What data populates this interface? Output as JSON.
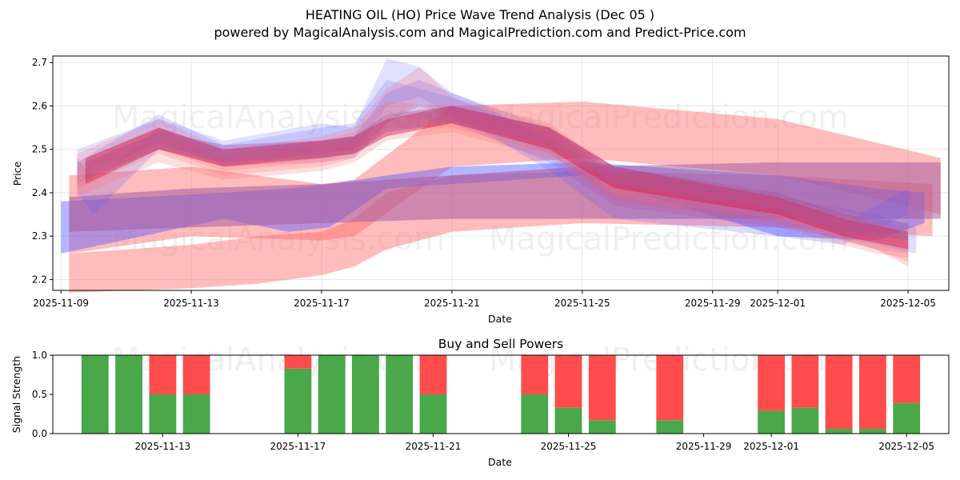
{
  "header": {
    "title": "HEATING OIL (HO) Price Wave Trend Analysis (Dec 05 )",
    "subtitle": "powered by MagicalAnalysis.com and MagicalPrediction.com and Predict-Price.com"
  },
  "watermarks": [
    "MagicalAnalysis.com",
    "MagicalPrediction.com"
  ],
  "colors": {
    "sell": "#ff4c4c",
    "buy": "#4aa74a",
    "blue_band": "#5a5aff",
    "red_band": "#ff6b6b",
    "grid": "#e6e6e6"
  },
  "chart_data": [
    {
      "type": "area",
      "title": "",
      "xlabel": "Date",
      "ylabel": "Price",
      "x_range": [
        "2025-11-08T18:00",
        "2025-12-06T06:00"
      ],
      "ylim": [
        2.175,
        2.715
      ],
      "yticks": [
        2.2,
        2.3,
        2.4,
        2.5,
        2.6,
        2.7
      ],
      "ytick_labels": [
        "2.2",
        "2.3",
        "2.4",
        "2.5",
        "2.6",
        "2.7"
      ],
      "xticks": [
        "2025-11-09",
        "2025-11-13",
        "2025-11-17",
        "2025-11-21",
        "2025-11-25",
        "2025-11-29",
        "2025-12-01",
        "2025-12-05"
      ],
      "grid": true,
      "bands": [
        {
          "name": "wide-red-1",
          "color": "red",
          "opacity": 0.45,
          "points": [
            [
              "2025-11-09T06:00",
              2.44,
              2.26
            ],
            [
              "2025-11-13",
              2.46,
              2.3
            ],
            [
              "2025-11-17",
              2.42,
              2.29
            ],
            [
              "2025-11-18",
              2.43,
              2.3
            ],
            [
              "2025-11-21",
              2.6,
              2.46
            ],
            [
              "2025-11-25",
              2.61,
              2.48
            ],
            [
              "2025-12-01",
              2.57,
              2.44
            ],
            [
              "2025-12-06",
              2.48,
              2.35
            ]
          ]
        },
        {
          "name": "wide-red-2",
          "color": "red",
          "opacity": 0.45,
          "points": [
            [
              "2025-11-09T06:00",
              2.26,
              2.17
            ],
            [
              "2025-11-13",
              2.28,
              2.18
            ],
            [
              "2025-11-15",
              2.3,
              2.19
            ],
            [
              "2025-11-17",
              2.31,
              2.21
            ],
            [
              "2025-11-18",
              2.34,
              2.23
            ],
            [
              "2025-11-19",
              2.4,
              2.27
            ],
            [
              "2025-11-21",
              2.44,
              2.31
            ],
            [
              "2025-11-25",
              2.45,
              2.33
            ],
            [
              "2025-12-01",
              2.44,
              2.32
            ],
            [
              "2025-12-05T18:00",
              2.42,
              2.3
            ]
          ]
        },
        {
          "name": "blue-flat-1",
          "color": "blue",
          "opacity": 0.45,
          "points": [
            [
              "2025-11-09",
              2.38,
              2.26
            ],
            [
              "2025-11-14",
              2.4,
              2.34
            ],
            [
              "2025-11-16",
              2.41,
              2.31
            ],
            [
              "2025-11-17T06:00",
              2.42,
              2.32
            ],
            [
              "2025-11-19",
              2.44,
              2.41
            ],
            [
              "2025-11-21",
              2.46,
              2.42
            ],
            [
              "2025-11-25",
              2.47,
              2.44
            ],
            [
              "2025-12-01",
              2.44,
              2.3
            ],
            [
              "2025-12-04",
              2.41,
              2.29
            ],
            [
              "2025-12-05T12:00",
              2.4,
              2.33
            ]
          ]
        },
        {
          "name": "purple-flat",
          "color": "purple",
          "opacity": 0.55,
          "points": [
            [
              "2025-11-09T06:00",
              2.39,
              2.31
            ],
            [
              "2025-11-13",
              2.41,
              2.32
            ],
            [
              "2025-11-17",
              2.42,
              2.33
            ],
            [
              "2025-11-21",
              2.44,
              2.34
            ],
            [
              "2025-11-25",
              2.46,
              2.34
            ],
            [
              "2025-12-01",
              2.47,
              2.34
            ],
            [
              "2025-12-06",
              2.47,
              2.34
            ]
          ]
        },
        {
          "name": "wave-blue-1",
          "color": "blue",
          "opacity": 0.18,
          "points": [
            [
              "2025-11-09T12:00",
              2.5,
              2.44
            ],
            [
              "2025-11-12",
              2.57,
              2.51
            ],
            [
              "2025-11-14",
              2.52,
              2.47
            ],
            [
              "2025-11-17",
              2.56,
              2.49
            ],
            [
              "2025-11-18",
              2.55,
              2.5
            ],
            [
              "2025-11-19",
              2.71,
              2.6
            ],
            [
              "2025-11-20",
              2.69,
              2.62
            ],
            [
              "2025-11-21",
              2.63,
              2.58
            ],
            [
              "2025-11-24",
              2.55,
              2.49
            ],
            [
              "2025-11-26",
              2.44,
              2.38
            ],
            [
              "2025-12-01",
              2.4,
              2.33
            ],
            [
              "2025-12-04",
              2.33,
              2.27
            ],
            [
              "2025-12-05",
              2.3,
              2.26
            ]
          ]
        },
        {
          "name": "wave-blue-2",
          "color": "blue",
          "opacity": 0.22,
          "points": [
            [
              "2025-11-09T12:00",
              2.48,
              2.4
            ],
            [
              "2025-11-10",
              2.43,
              2.35
            ],
            [
              "2025-11-12",
              2.55,
              2.5
            ],
            [
              "2025-11-14",
              2.5,
              2.46
            ],
            [
              "2025-11-17",
              2.52,
              2.47
            ],
            [
              "2025-11-18",
              2.53,
              2.48
            ],
            [
              "2025-11-19",
              2.63,
              2.56
            ],
            [
              "2025-11-20",
              2.66,
              2.6
            ],
            [
              "2025-11-22",
              2.6,
              2.54
            ],
            [
              "2025-11-24",
              2.52,
              2.45
            ],
            [
              "2025-11-26",
              2.4,
              2.34
            ],
            [
              "2025-12-01",
              2.37,
              2.3
            ],
            [
              "2025-12-03",
              2.33,
              2.28
            ],
            [
              "2025-12-05",
              2.41,
              2.35
            ]
          ]
        },
        {
          "name": "wave-blue-3",
          "color": "blue",
          "opacity": 0.2,
          "points": [
            [
              "2025-11-09T12:00",
              2.47,
              2.42
            ],
            [
              "2025-11-12",
              2.58,
              2.52
            ],
            [
              "2025-11-14",
              2.51,
              2.46
            ],
            [
              "2025-11-17",
              2.55,
              2.49
            ],
            [
              "2025-11-18",
              2.56,
              2.5
            ],
            [
              "2025-11-19",
              2.66,
              2.58
            ],
            [
              "2025-11-21",
              2.62,
              2.56
            ],
            [
              "2025-11-24",
              2.53,
              2.47
            ],
            [
              "2025-11-26",
              2.43,
              2.37
            ],
            [
              "2025-12-01",
              2.39,
              2.32
            ],
            [
              "2025-12-04",
              2.35,
              2.28
            ],
            [
              "2025-12-05T06:00",
              2.32,
              2.26
            ]
          ]
        },
        {
          "name": "wave-red-1",
          "color": "red",
          "opacity": 0.22,
          "points": [
            [
              "2025-11-09T12:00",
              2.49,
              2.42
            ],
            [
              "2025-11-12",
              2.57,
              2.5
            ],
            [
              "2025-11-14",
              2.5,
              2.45
            ],
            [
              "2025-11-17",
              2.53,
              2.47
            ],
            [
              "2025-11-18",
              2.55,
              2.49
            ],
            [
              "2025-11-19",
              2.64,
              2.56
            ],
            [
              "2025-11-20",
              2.69,
              2.61
            ],
            [
              "2025-11-21",
              2.62,
              2.57
            ],
            [
              "2025-11-24",
              2.56,
              2.5
            ],
            [
              "2025-11-26",
              2.45,
              2.39
            ],
            [
              "2025-12-01",
              2.4,
              2.34
            ],
            [
              "2025-12-04",
              2.34,
              2.27
            ],
            [
              "2025-12-05",
              2.28,
              2.24
            ]
          ]
        },
        {
          "name": "wave-red-2",
          "color": "red",
          "opacity": 0.22,
          "points": [
            [
              "2025-11-09T12:00",
              2.47,
              2.41
            ],
            [
              "2025-11-12",
              2.55,
              2.49
            ],
            [
              "2025-11-14",
              2.49,
              2.44
            ],
            [
              "2025-11-17",
              2.52,
              2.46
            ],
            [
              "2025-11-18",
              2.54,
              2.48
            ],
            [
              "2025-11-19",
              2.61,
              2.55
            ],
            [
              "2025-11-21",
              2.6,
              2.55
            ],
            [
              "2025-11-24",
              2.55,
              2.49
            ],
            [
              "2025-11-26",
              2.44,
              2.38
            ],
            [
              "2025-12-01",
              2.39,
              2.33
            ],
            [
              "2025-12-04",
              2.33,
              2.27
            ],
            [
              "2025-12-05",
              2.31,
              2.23
            ]
          ]
        },
        {
          "name": "wave-red-3",
          "color": "red",
          "opacity": 0.22,
          "points": [
            [
              "2025-11-09T12:00",
              2.46,
              2.39
            ],
            [
              "2025-11-12",
              2.54,
              2.47
            ],
            [
              "2025-11-14",
              2.48,
              2.43
            ],
            [
              "2025-11-17",
              2.51,
              2.45
            ],
            [
              "2025-11-18",
              2.52,
              2.47
            ],
            [
              "2025-11-19",
              2.57,
              2.52
            ],
            [
              "2025-11-21",
              2.59,
              2.54
            ],
            [
              "2025-11-24",
              2.54,
              2.48
            ],
            [
              "2025-11-26",
              2.43,
              2.37
            ],
            [
              "2025-12-01",
              2.38,
              2.32
            ],
            [
              "2025-12-04",
              2.32,
              2.26
            ],
            [
              "2025-12-05",
              2.3,
              2.25
            ]
          ]
        },
        {
          "name": "wave-crimson",
          "color": "crimson",
          "opacity": 0.45,
          "points": [
            [
              "2025-11-09T18:00",
              2.48,
              2.42
            ],
            [
              "2025-11-12",
              2.55,
              2.5
            ],
            [
              "2025-11-14",
              2.5,
              2.46
            ],
            [
              "2025-11-17",
              2.52,
              2.48
            ],
            [
              "2025-11-18",
              2.53,
              2.49
            ],
            [
              "2025-11-19",
              2.57,
              2.53
            ],
            [
              "2025-11-21",
              2.6,
              2.56
            ],
            [
              "2025-11-24",
              2.55,
              2.5
            ],
            [
              "2025-11-26",
              2.46,
              2.41
            ],
            [
              "2025-12-01",
              2.39,
              2.35
            ],
            [
              "2025-12-03",
              2.34,
              2.3
            ],
            [
              "2025-12-05",
              2.31,
              2.27
            ]
          ]
        },
        {
          "name": "wave-purple",
          "color": "purple",
          "opacity": 0.4,
          "points": [
            [
              "2025-11-09T18:00",
              2.47,
              2.43
            ],
            [
              "2025-11-12",
              2.54,
              2.5
            ],
            [
              "2025-11-14",
              2.51,
              2.47
            ],
            [
              "2025-11-17",
              2.52,
              2.48
            ],
            [
              "2025-11-18",
              2.53,
              2.49
            ],
            [
              "2025-11-19",
              2.58,
              2.54
            ],
            [
              "2025-11-21",
              2.6,
              2.56
            ],
            [
              "2025-11-24",
              2.55,
              2.51
            ],
            [
              "2025-11-26",
              2.46,
              2.42
            ],
            [
              "2025-12-01",
              2.4,
              2.36
            ],
            [
              "2025-12-03",
              2.35,
              2.31
            ],
            [
              "2025-12-05",
              2.33,
              2.29
            ]
          ]
        }
      ]
    },
    {
      "type": "bar",
      "title": "Buy and Sell Powers",
      "xlabel": "Date",
      "ylabel": "Signal Strength",
      "ylim": [
        0,
        1
      ],
      "yticks": [
        0.0,
        0.5,
        1.0
      ],
      "ytick_labels": [
        "0.0",
        "0.5",
        "1.0"
      ],
      "x_range": [
        "2025-11-09T18:00",
        "2025-12-06T06:00"
      ],
      "xticks": [
        "2025-11-13",
        "2025-11-17",
        "2025-11-21",
        "2025-11-25",
        "2025-11-29",
        "2025-12-01",
        "2025-12-05"
      ],
      "categories": [
        "2025-11-11",
        "2025-11-12",
        "2025-11-13",
        "2025-11-14",
        "2025-11-17",
        "2025-11-18",
        "2025-11-19",
        "2025-11-20",
        "2025-11-21",
        "2025-11-24",
        "2025-11-25",
        "2025-11-26",
        "2025-11-28",
        "2025-12-01",
        "2025-12-02",
        "2025-12-03",
        "2025-12-04",
        "2025-12-05"
      ],
      "series": [
        {
          "name": "Buy",
          "values": [
            1.0,
            1.0,
            0.5,
            0.5,
            0.83,
            1.0,
            1.0,
            1.0,
            0.5,
            0.5,
            0.33,
            0.17,
            0.17,
            0.29,
            0.33,
            0.06,
            0.06,
            0.39
          ]
        },
        {
          "name": "Sell",
          "values": [
            0.0,
            0.0,
            0.5,
            0.5,
            0.17,
            0.0,
            0.0,
            0.0,
            0.5,
            0.5,
            0.67,
            0.83,
            0.83,
            0.71,
            0.67,
            0.94,
            0.94,
            0.61
          ]
        }
      ]
    }
  ]
}
